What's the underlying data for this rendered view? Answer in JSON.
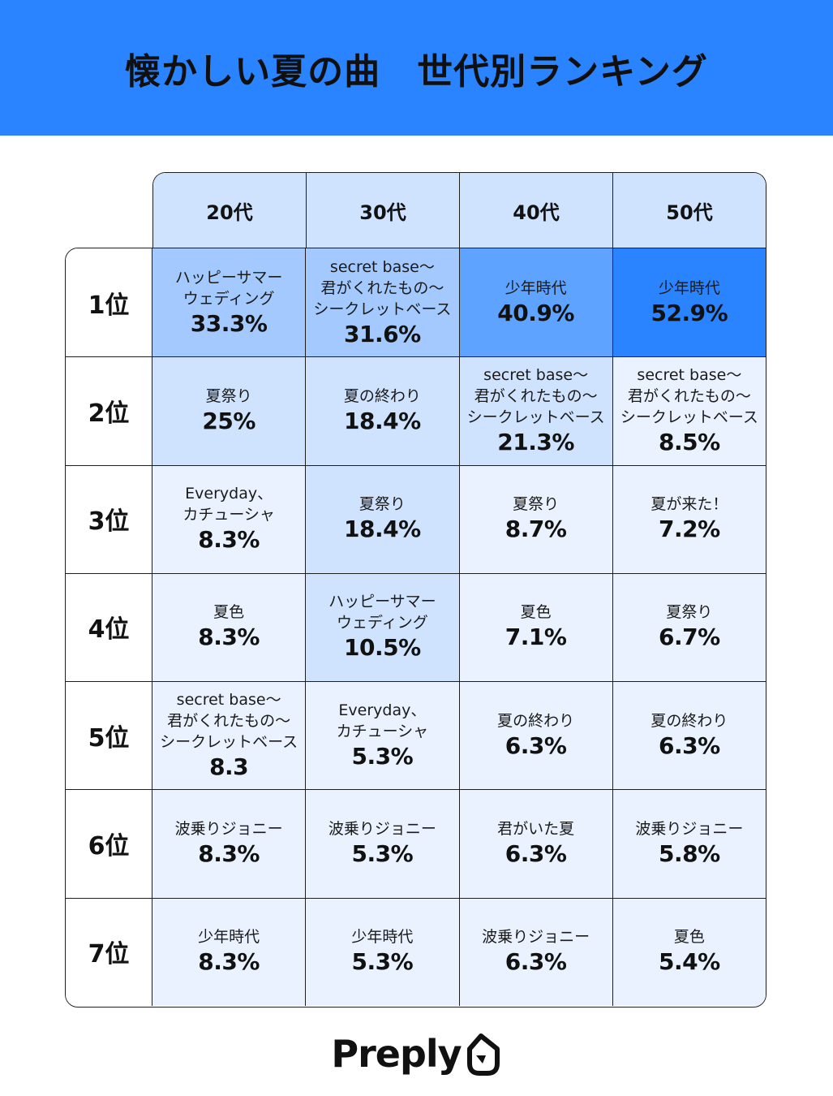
{
  "header": {
    "title": "懐かしい夏の曲　世代別ランキング"
  },
  "colors": {
    "header_bg": "#2a84ff",
    "level_1": "#eaf2ff",
    "level_2": "#cfe3ff",
    "level_3": "#a3c9ff",
    "level_4": "#5ea3ff",
    "level_5": "#2a84ff"
  },
  "chart_data": {
    "type": "table",
    "title": "懐かしい夏の曲　世代別ランキング",
    "columns": [
      "20代",
      "30代",
      "40代",
      "50代"
    ],
    "rows": [
      {
        "rank": "1位",
        "cells": [
          {
            "song": "ハッピーサマー\nウェディング",
            "pct": "33.3%",
            "value": 33.3
          },
          {
            "song": "secret base〜\n君がくれたもの〜\nシークレットベース",
            "pct": "31.6%",
            "value": 31.6
          },
          {
            "song": "少年時代",
            "pct": "40.9%",
            "value": 40.9
          },
          {
            "song": "少年時代",
            "pct": "52.9%",
            "value": 52.9
          }
        ]
      },
      {
        "rank": "2位",
        "cells": [
          {
            "song": "夏祭り",
            "pct": "25%",
            "value": 25
          },
          {
            "song": "夏の終わり",
            "pct": "18.4%",
            "value": 18.4
          },
          {
            "song": "secret base〜\n君がくれたもの〜\nシークレットベース",
            "pct": "21.3%",
            "value": 21.3
          },
          {
            "song": "secret base〜\n君がくれたもの〜\nシークレットベース",
            "pct": "8.5%",
            "value": 8.5
          }
        ]
      },
      {
        "rank": "3位",
        "cells": [
          {
            "song": "Everyday、\nカチューシャ",
            "pct": "8.3%",
            "value": 8.3
          },
          {
            "song": "夏祭り",
            "pct": "18.4%",
            "value": 18.4
          },
          {
            "song": "夏祭り",
            "pct": "8.7%",
            "value": 8.7
          },
          {
            "song": "夏が来た！",
            "pct": "7.2%",
            "value": 7.2
          }
        ]
      },
      {
        "rank": "4位",
        "cells": [
          {
            "song": "夏色",
            "pct": "8.3%",
            "value": 8.3
          },
          {
            "song": "ハッピーサマー\nウェディング",
            "pct": "10.5%",
            "value": 10.5
          },
          {
            "song": "夏色",
            "pct": "7.1%",
            "value": 7.1
          },
          {
            "song": "夏祭り",
            "pct": "6.7%",
            "value": 6.7
          }
        ]
      },
      {
        "rank": "5位",
        "cells": [
          {
            "song": "secret base〜\n君がくれたもの〜\nシークレットベース",
            "pct": "8.3",
            "value": 8.3
          },
          {
            "song": "Everyday、\nカチューシャ",
            "pct": "5.3%",
            "value": 5.3
          },
          {
            "song": "夏の終わり",
            "pct": "6.3%",
            "value": 6.3
          },
          {
            "song": "夏の終わり",
            "pct": "6.3%",
            "value": 6.3
          }
        ]
      },
      {
        "rank": "6位",
        "cells": [
          {
            "song": "波乗りジョニー",
            "pct": "8.3%",
            "value": 8.3
          },
          {
            "song": "波乗りジョニー",
            "pct": "5.3%",
            "value": 5.3
          },
          {
            "song": "君がいた夏",
            "pct": "6.3%",
            "value": 6.3
          },
          {
            "song": "波乗りジョニー",
            "pct": "5.8%",
            "value": 5.8
          }
        ]
      },
      {
        "rank": "7位",
        "cells": [
          {
            "song": "少年時代",
            "pct": "8.3%",
            "value": 8.3
          },
          {
            "song": "少年時代",
            "pct": "5.3%",
            "value": 5.3
          },
          {
            "song": "波乗りジョニー",
            "pct": "6.3%",
            "value": 6.3
          },
          {
            "song": "夏色",
            "pct": "5.4%",
            "value": 5.4
          }
        ]
      }
    ]
  },
  "logo": {
    "text": "Preply",
    "icon": "preply-bird-icon"
  }
}
